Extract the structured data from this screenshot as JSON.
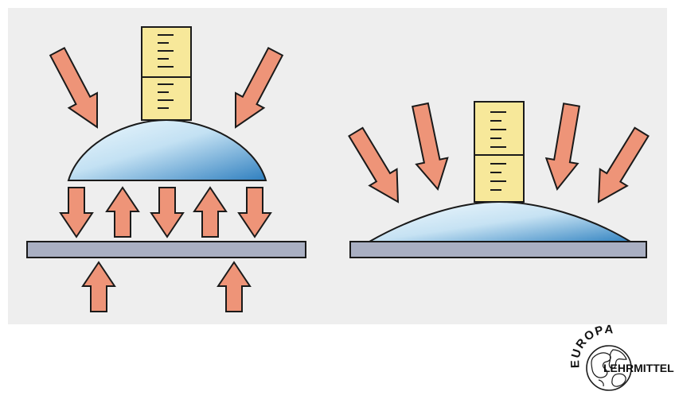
{
  "colors": {
    "panel_background": "#eeeeee",
    "arrow_fill": "#ee9478",
    "arrow_stroke": "#1a1a1a",
    "plate_fill": "#a9afc2",
    "drop_light": "#eaf5fc",
    "drop_dark": "#2f7fbf",
    "gauge_fill": "#f7e89a",
    "gauge_stroke": "#1a1a1a"
  },
  "icons": {
    "force_arrow": "arrow-icon",
    "logo": "europa-lehrmittel-globe-logo"
  },
  "logo": {
    "text_top": "EUROPA",
    "text_bottom": "LEHRMITTEL"
  }
}
